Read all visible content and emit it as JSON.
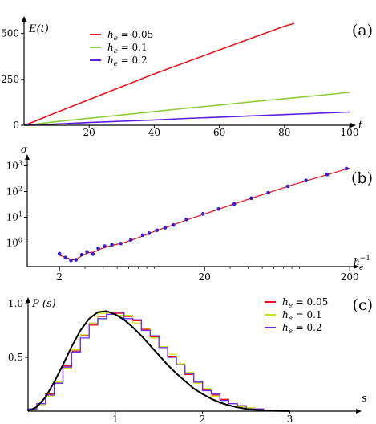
{
  "chart_data": [
    {
      "type": "line",
      "panel_label": "(a)",
      "ylabel": "E(t)",
      "xlabel": "t",
      "xlim": [
        0,
        100
      ],
      "ylim": [
        0,
        560
      ],
      "x_ticks": [
        "20",
        "40",
        "60",
        "80",
        "100"
      ],
      "y_ticks": [
        "0",
        "250",
        "500"
      ],
      "legend": "top-left",
      "series": [
        {
          "name": "he = 0.05",
          "legend_main": "h",
          "legend_sub": "e",
          "legend_rest": " = 0.05",
          "color": "#e8141c",
          "x": [
            0,
            2,
            10,
            20,
            30,
            40,
            50,
            60,
            70,
            80,
            83
          ],
          "y": [
            0,
            12,
            70,
            140,
            210,
            280,
            345,
            410,
            475,
            540,
            555
          ]
        },
        {
          "name": "he = 0.1",
          "legend_main": "h",
          "legend_sub": "e",
          "legend_rest": " = 0.1",
          "color": "#8fcc3a",
          "x": [
            0,
            2,
            10,
            20,
            30,
            40,
            50,
            60,
            70,
            80,
            90,
            100
          ],
          "y": [
            0,
            3,
            20,
            38,
            56,
            75,
            93,
            110,
            128,
            145,
            162,
            180
          ]
        },
        {
          "name": "he = 0.2",
          "legend_main": "h",
          "legend_sub": "e",
          "legend_rest": " = 0.2",
          "color": "#5a1ee0",
          "x": [
            0,
            2,
            10,
            20,
            30,
            40,
            50,
            60,
            70,
            80,
            90,
            100
          ],
          "y": [
            0,
            1,
            7,
            15,
            22,
            29,
            37,
            44,
            51,
            58,
            65,
            72
          ]
        }
      ]
    },
    {
      "type": "scatter",
      "panel_label": "(b)",
      "ylabel": "σ",
      "xlabel_main": "h",
      "xlabel_sub": "e",
      "xlabel_sup": "−1",
      "xscale": "log",
      "yscale": "log",
      "xlim": [
        1.2,
        210
      ],
      "ylim": [
        0.12,
        1600
      ],
      "x_ticks": [
        {
          "value": 2,
          "label": "2"
        },
        {
          "value": 20,
          "label": "20"
        },
        {
          "value": 200,
          "label": "200"
        }
      ],
      "y_ticks": [
        {
          "value": 1,
          "base": "10",
          "exp": "0"
        },
        {
          "value": 10,
          "base": "10",
          "exp": "1"
        },
        {
          "value": 100,
          "base": "10",
          "exp": "2"
        },
        {
          "value": 1000,
          "base": "10",
          "exp": "3"
        }
      ],
      "point_color": "#3a1ec8",
      "fit_color": "#e8141c",
      "points": [
        {
          "x": 2.0,
          "y": 0.38
        },
        {
          "x": 2.2,
          "y": 0.27
        },
        {
          "x": 2.4,
          "y": 0.21
        },
        {
          "x": 2.6,
          "y": 0.22
        },
        {
          "x": 2.85,
          "y": 0.35
        },
        {
          "x": 3.1,
          "y": 0.45
        },
        {
          "x": 3.4,
          "y": 0.37
        },
        {
          "x": 3.7,
          "y": 0.62
        },
        {
          "x": 4.1,
          "y": 0.75
        },
        {
          "x": 4.6,
          "y": 0.85
        },
        {
          "x": 5.3,
          "y": 0.95
        },
        {
          "x": 6.2,
          "y": 1.3
        },
        {
          "x": 7.5,
          "y": 2.0
        },
        {
          "x": 8.3,
          "y": 2.4
        },
        {
          "x": 9.4,
          "y": 3.1
        },
        {
          "x": 10.7,
          "y": 3.9
        },
        {
          "x": 12.2,
          "y": 5.0
        },
        {
          "x": 15.0,
          "y": 8.2
        },
        {
          "x": 19.5,
          "y": 13.5
        },
        {
          "x": 25.0,
          "y": 21.0
        },
        {
          "x": 32.0,
          "y": 33.0
        },
        {
          "x": 42.0,
          "y": 55.0
        },
        {
          "x": 55.0,
          "y": 90.0
        },
        {
          "x": 75.0,
          "y": 160.0
        },
        {
          "x": 100.0,
          "y": 270.0
        },
        {
          "x": 140.0,
          "y": 460.0
        },
        {
          "x": 190.0,
          "y": 780.0
        }
      ],
      "fit": [
        {
          "x": 2.0,
          "y": 0.33
        },
        {
          "x": 2.2,
          "y": 0.28
        },
        {
          "x": 2.45,
          "y": 0.22
        },
        {
          "x": 2.65,
          "y": 0.24
        },
        {
          "x": 2.9,
          "y": 0.34
        },
        {
          "x": 3.2,
          "y": 0.42
        },
        {
          "x": 3.5,
          "y": 0.45
        },
        {
          "x": 3.9,
          "y": 0.6
        },
        {
          "x": 4.5,
          "y": 0.78
        },
        {
          "x": 5.5,
          "y": 1.0
        },
        {
          "x": 7.0,
          "y": 1.6
        },
        {
          "x": 9.0,
          "y": 2.8
        },
        {
          "x": 12.0,
          "y": 4.9
        },
        {
          "x": 16.0,
          "y": 8.8
        },
        {
          "x": 22.0,
          "y": 16.0
        },
        {
          "x": 32.0,
          "y": 33.0
        },
        {
          "x": 50.0,
          "y": 75.0
        },
        {
          "x": 80.0,
          "y": 180.0
        },
        {
          "x": 130.0,
          "y": 400.0
        },
        {
          "x": 200.0,
          "y": 820.0
        }
      ]
    },
    {
      "type": "line",
      "panel_label": "(c)",
      "ylabel": "P (s)",
      "xlabel": "s",
      "xlim": [
        0,
        3.75
      ],
      "ylim": [
        0,
        1.0
      ],
      "x_ticks": [
        "1",
        "2",
        "3"
      ],
      "y_ticks": [
        "0.5",
        "1.0"
      ],
      "legend": "top-right",
      "bin_width": 0.1,
      "series": [
        {
          "name": "he = 0.05",
          "legend_main": "h",
          "legend_sub": "e",
          "legend_rest": " = 0.05",
          "color": "#e8141c",
          "step": true,
          "values": [
            0.02,
            0.06,
            0.16,
            0.28,
            0.42,
            0.56,
            0.7,
            0.8,
            0.88,
            0.92,
            0.91,
            0.88,
            0.84,
            0.76,
            0.69,
            0.6,
            0.51,
            0.43,
            0.34,
            0.28,
            0.2,
            0.15,
            0.11,
            0.07,
            0.05,
            0.03,
            0.02
          ]
        },
        {
          "name": "he = 0.1",
          "legend_main": "h",
          "legend_sub": "e",
          "legend_rest": " = 0.1",
          "color": "#cde321",
          "step": true,
          "values": [
            0.01,
            0.06,
            0.14,
            0.27,
            0.4,
            0.57,
            0.71,
            0.82,
            0.91,
            0.9,
            0.89,
            0.89,
            0.82,
            0.77,
            0.68,
            0.6,
            0.53,
            0.44,
            0.36,
            0.26,
            0.21,
            0.14,
            0.1,
            0.07,
            0.04,
            0.03,
            0.01
          ]
        },
        {
          "name": "he = 0.2",
          "legend_main": "h",
          "legend_sub": "e",
          "legend_rest": " = 0.2",
          "color": "#6a2cf0",
          "step": true,
          "values": [
            0.02,
            0.07,
            0.15,
            0.26,
            0.41,
            0.55,
            0.68,
            0.81,
            0.86,
            0.9,
            0.92,
            0.86,
            0.85,
            0.75,
            0.7,
            0.59,
            0.5,
            0.43,
            0.35,
            0.27,
            0.19,
            0.16,
            0.1,
            0.07,
            0.05,
            0.02,
            0.02
          ]
        },
        {
          "name": "fit",
          "color": "#000000",
          "curve": true,
          "x": [
            0,
            0.1,
            0.2,
            0.3,
            0.4,
            0.5,
            0.6,
            0.7,
            0.8,
            0.9,
            1.0,
            1.1,
            1.2,
            1.3,
            1.4,
            1.5,
            1.6,
            1.7,
            1.8,
            1.9,
            2.0,
            2.1,
            2.2,
            2.3,
            2.4,
            2.5,
            2.6,
            2.7,
            2.8,
            2.9,
            3.0
          ],
          "y": [
            0,
            0.04,
            0.13,
            0.27,
            0.43,
            0.6,
            0.75,
            0.86,
            0.92,
            0.93,
            0.9,
            0.85,
            0.78,
            0.7,
            0.61,
            0.52,
            0.43,
            0.35,
            0.28,
            0.21,
            0.16,
            0.115,
            0.08,
            0.055,
            0.035,
            0.022,
            0.013,
            0.008,
            0.004,
            0.002,
            0.001
          ]
        }
      ]
    }
  ]
}
